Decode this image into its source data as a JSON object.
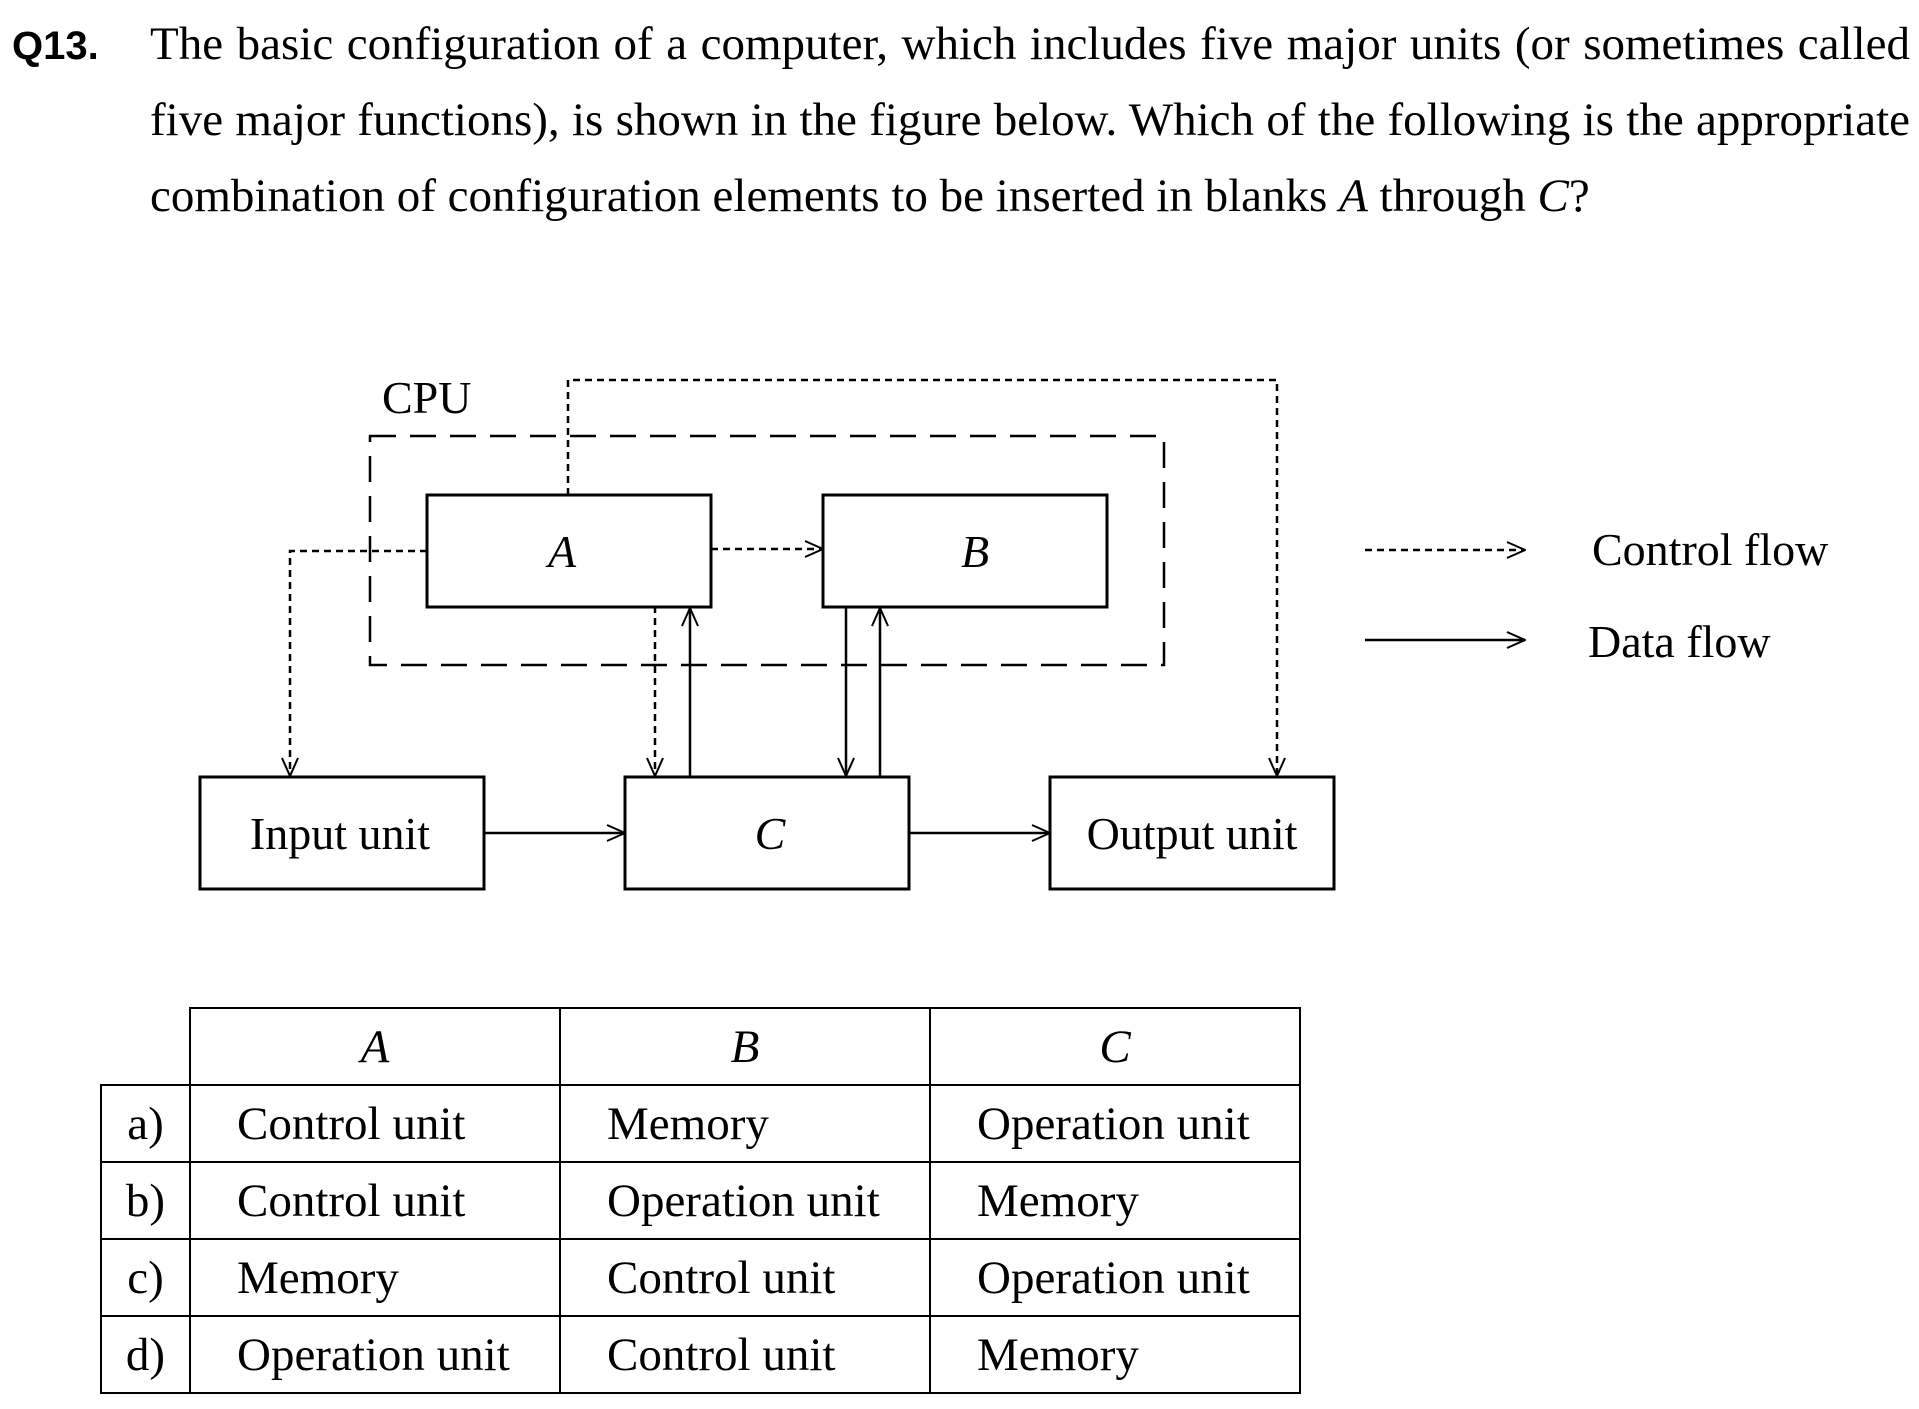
{
  "question": {
    "number": "Q13.",
    "text_before": "The basic configuration of a computer, which includes five major units (or sometimes called five major functions), is shown in the figure below.   Which of the following is the appropriate combination of configuration elements to be inserted in blanks ",
    "var_a": "A",
    "text_middle": " through ",
    "var_c": "C",
    "text_after": "?"
  },
  "diagram": {
    "cpu_label": "CPU",
    "box_a": "A",
    "box_b": "B",
    "box_c": "C",
    "input_unit": "Input unit",
    "output_unit": "Output unit",
    "legend": {
      "control_flow": "Control flow",
      "data_flow": "Data flow"
    }
  },
  "table": {
    "headers": [
      "A",
      "B",
      "C"
    ],
    "rows": [
      {
        "option": "a)",
        "a": "Control unit",
        "b": "Memory",
        "c": "Operation unit"
      },
      {
        "option": "b)",
        "a": "Control unit",
        "b": "Operation unit",
        "c": "Memory"
      },
      {
        "option": "c)",
        "a": "Memory",
        "b": "Control unit",
        "c": "Operation unit"
      },
      {
        "option": "d)",
        "a": "Operation unit",
        "b": "Control unit",
        "c": "Memory"
      }
    ]
  }
}
